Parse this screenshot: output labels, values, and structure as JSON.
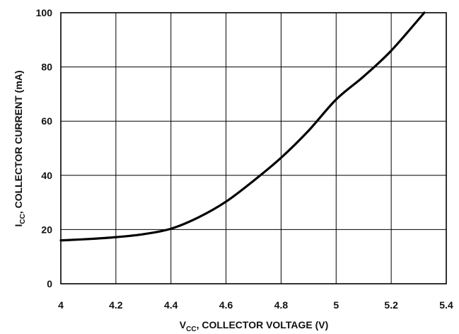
{
  "chart_data": {
    "type": "line",
    "title": "",
    "xlabel": {
      "main": "V",
      "sub": "CC",
      "rest": ", COLLECTOR VOLTAGE (V)"
    },
    "ylabel": {
      "main": "I",
      "sub": "CC",
      "rest": ", COLLECTOR CURRENT (mA)"
    },
    "xlim": [
      4,
      5.4
    ],
    "ylim": [
      0,
      100
    ],
    "grid": true,
    "x_ticks": [
      4,
      4.2,
      4.4,
      4.6,
      4.8,
      5,
      5.2,
      5.4
    ],
    "x_tick_labels": [
      "4",
      "4.2",
      "4.4",
      "4.6",
      "4.8",
      "5",
      "5.2",
      "5.4"
    ],
    "y_ticks": [
      0,
      20,
      40,
      60,
      80,
      100
    ],
    "y_tick_labels": [
      "0",
      "20",
      "40",
      "60",
      "80",
      "100"
    ],
    "series": [
      {
        "color": "#000000",
        "x": [
          4.0,
          4.1,
          4.2,
          4.3,
          4.4,
          4.5,
          4.6,
          4.7,
          4.8,
          4.9,
          5.0,
          5.1,
          5.2,
          5.32
        ],
        "y": [
          16,
          16.5,
          17.2,
          18.3,
          20.3,
          24.5,
          30.3,
          38,
          46.5,
          56.5,
          68,
          76.5,
          86,
          100
        ]
      }
    ]
  }
}
